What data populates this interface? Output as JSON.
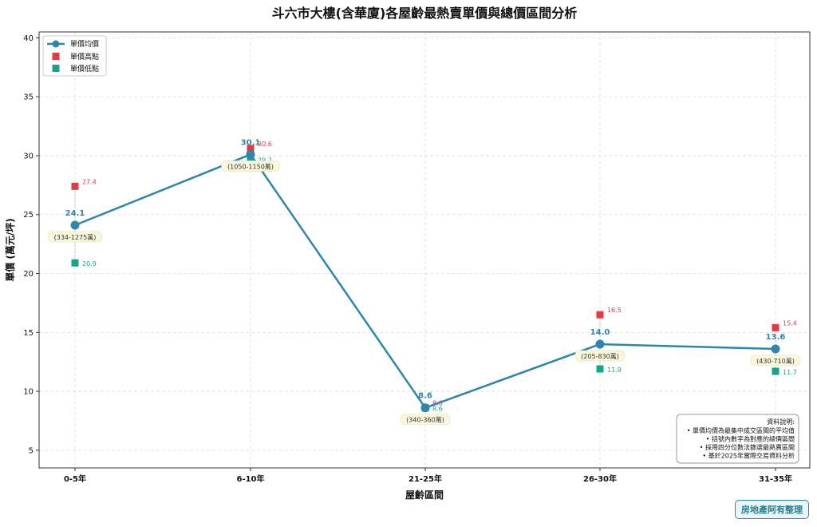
{
  "chart_data": {
    "type": "line",
    "title": "斗六市大樓(含華廈)各屋齡最熱賣單價與總價區間分析",
    "xlabel": "屋齡區間",
    "ylabel": "單價 (萬元/坪)",
    "ylim": [
      3.5,
      40.5
    ],
    "yticks": [
      5,
      10,
      15,
      20,
      25,
      30,
      35,
      40
    ],
    "grid": true,
    "legend_position": "top-left",
    "categories": [
      "0-5年",
      "6-10年",
      "21-25年",
      "26-30年",
      "31-35年"
    ],
    "series": [
      {
        "name": "單價均價",
        "values": [
          24.1,
          30.1,
          8.6,
          14.0,
          13.6
        ],
        "labels": [
          "24.1",
          "30.1",
          "8.6",
          "14.0",
          "13.6"
        ],
        "color": "#2e86ab"
      },
      {
        "name": "單價高點",
        "values": [
          27.4,
          30.6,
          8.6,
          16.5,
          15.4
        ],
        "labels": [
          "27.4",
          "30.6",
          "8.6",
          "16.5",
          "15.4"
        ],
        "color": "#e63946"
      },
      {
        "name": "單價低點",
        "values": [
          20.9,
          29.7,
          8.6,
          11.9,
          11.7
        ],
        "labels": [
          "20.9",
          "29.7",
          "8.6",
          "11.9",
          "11.7"
        ],
        "color": "#12a58a"
      }
    ],
    "total_price_ranges": [
      "(334-1275萬)",
      "(1050-1150萬)",
      "(340-360萬)",
      "(205-830萬)",
      "(430-710萬)"
    ],
    "note": {
      "title": "資料說明:",
      "lines": [
        "• 單價均價為最集中成交區間的平均值",
        "• 括號內數字為對應的總價區間",
        "• 採用四分位數法篩選最熱賣區間",
        "• 基於2025年實際交易資料分析"
      ]
    }
  },
  "watermark": "房地產阿有整理"
}
